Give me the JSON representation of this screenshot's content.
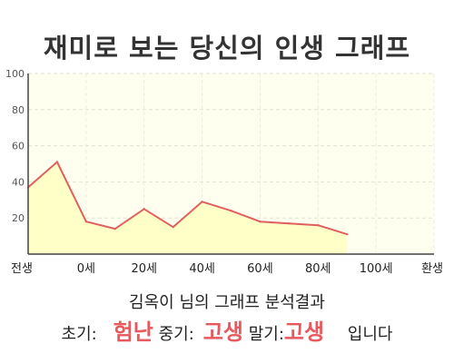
{
  "title": "재미로 보는 당신의 인생 그래프",
  "chart_data": {
    "type": "area",
    "x": [
      0,
      1,
      2,
      3,
      4,
      5,
      6,
      7,
      8,
      9,
      10,
      11
    ],
    "y": [
      37,
      51,
      18,
      14,
      25,
      15,
      29,
      24,
      18,
      17,
      16,
      11
    ],
    "x_tick_labels": [
      "전생",
      "0세",
      "20세",
      "40세",
      "60세",
      "80세",
      "100세",
      "환생"
    ],
    "x_tick_positions": [
      0,
      2,
      4,
      6,
      8,
      10,
      12,
      14
    ],
    "x_range": [
      0,
      14
    ],
    "ylim": [
      0,
      100
    ],
    "y_ticks": [
      20,
      40,
      60,
      80,
      100
    ],
    "grid": true,
    "line_color": "#e06060",
    "fill_color": "#ffffc8",
    "plot_background": "#fffff0"
  },
  "result": {
    "header": "김옥이 님의 그래프 분석결과",
    "early_label": "초기:",
    "early_value": "험난",
    "middle_label": "중기:",
    "middle_value": "고생",
    "late_label": "말기:",
    "late_value": "고생",
    "suffix": "입니다"
  }
}
